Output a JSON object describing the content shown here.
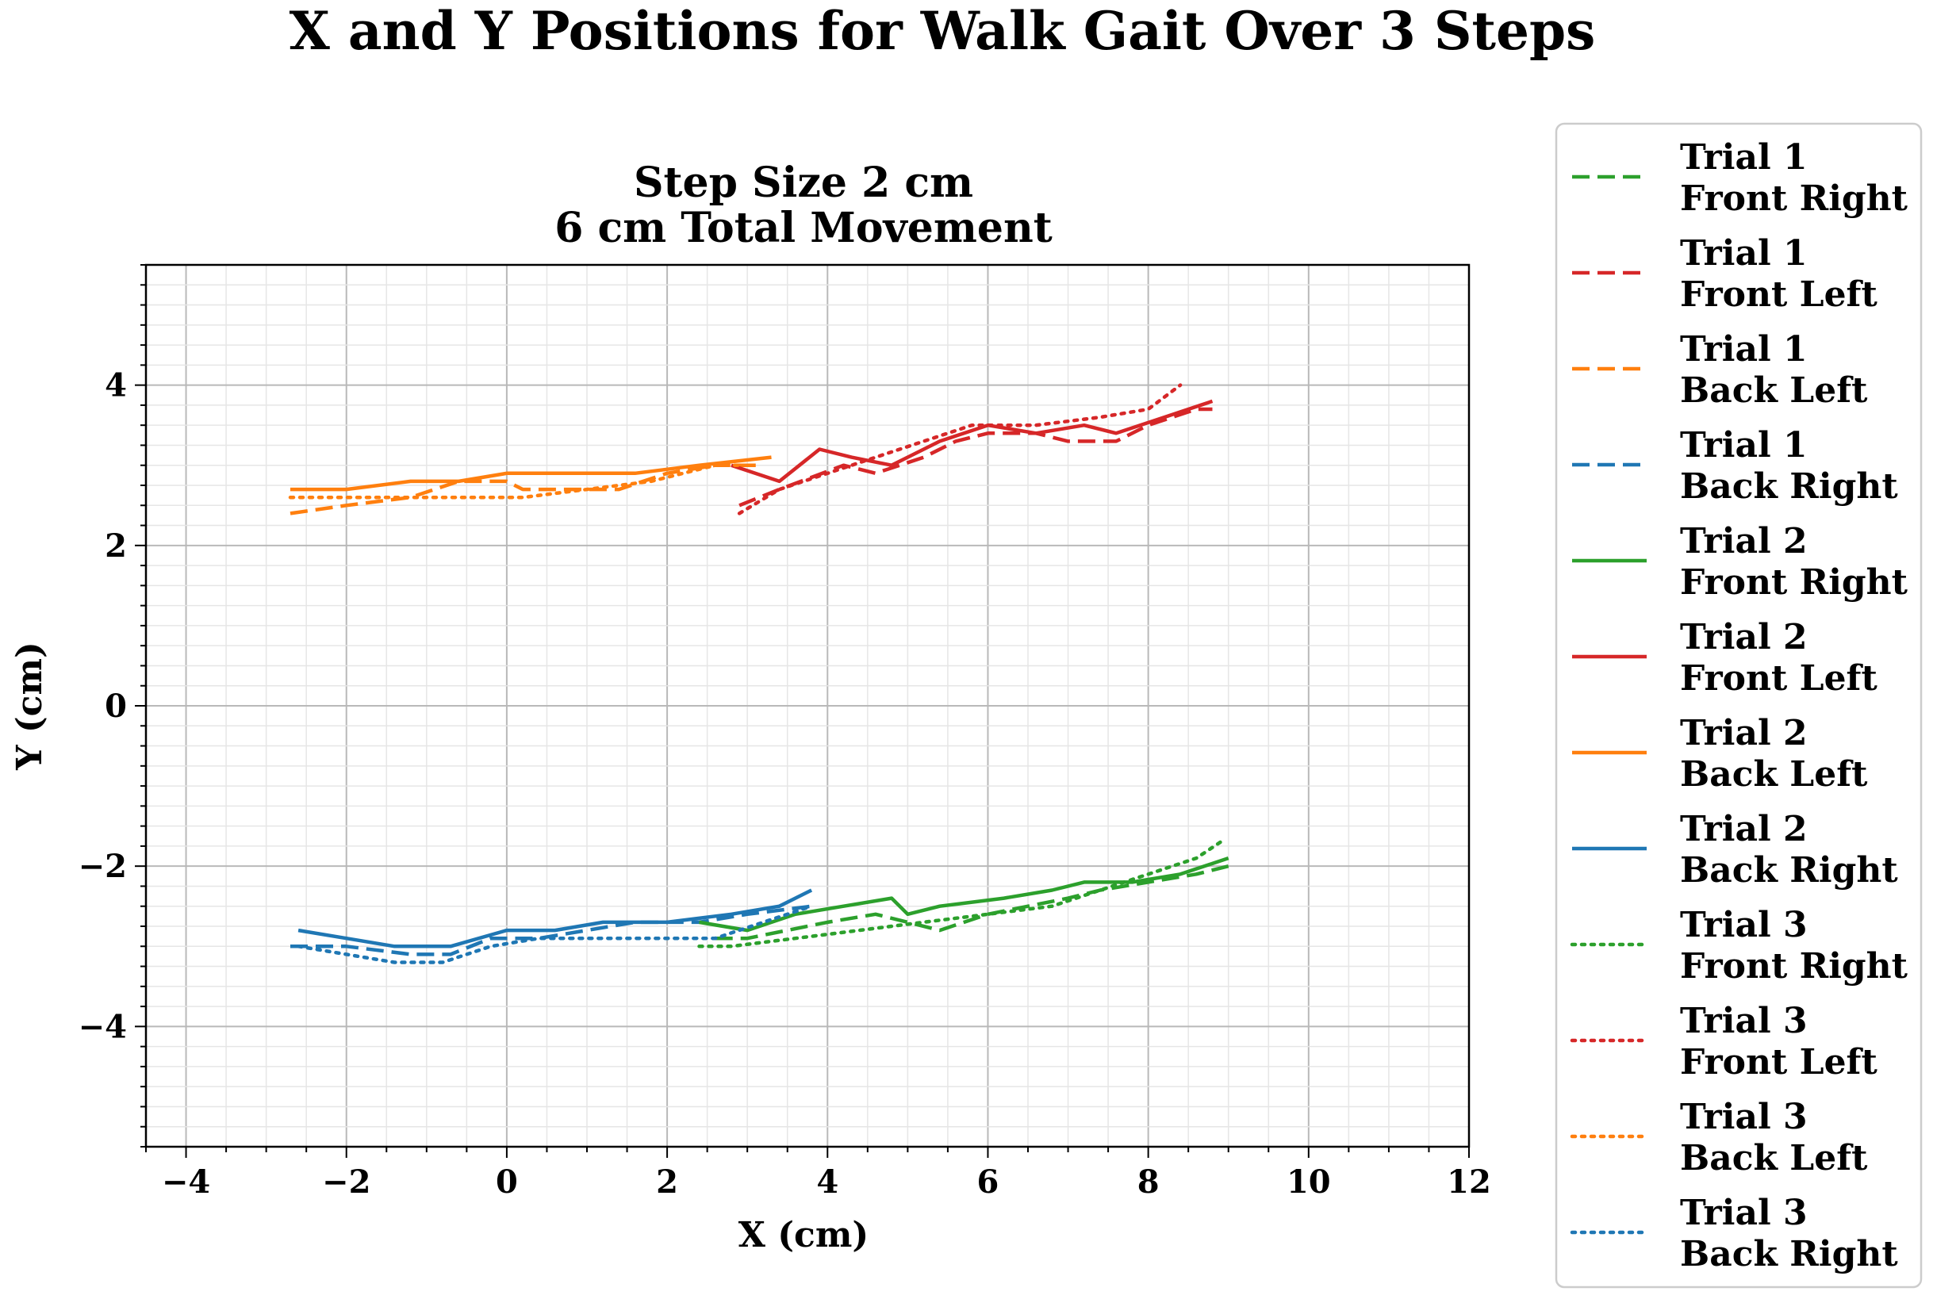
{
  "chart_data": {
    "type": "line",
    "suptitle": "X and Y Positions for Walk Gait Over 3 Steps",
    "title_lines": [
      "Step Size 2 cm",
      "6 cm Total Movement"
    ],
    "xlabel": "X (cm)",
    "ylabel": "Y (cm)",
    "xlim": [
      -4.5,
      12
    ],
    "ylim": [
      -5.5,
      5.5
    ],
    "xticks": [
      -4,
      -2,
      0,
      2,
      4,
      6,
      8,
      10,
      12
    ],
    "xtick_labels": [
      "−4",
      "−2",
      "0",
      "2",
      "4",
      "6",
      "8",
      "10",
      "12"
    ],
    "yticks": [
      -4,
      -2,
      0,
      2,
      4
    ],
    "ytick_labels": [
      "−4",
      "−2",
      "0",
      "2",
      "4"
    ],
    "grid": true,
    "legend_position": "outside-right",
    "colors": {
      "front_right": "#2ca02c",
      "front_left": "#d62728",
      "back_left": "#ff7f0e",
      "back_right": "#1f77b4"
    },
    "series": [
      {
        "label_line1": "Trial 1",
        "label_line2": "Front Right",
        "color": "#2ca02c",
        "dash": "dashed",
        "x": [
          2.6,
          3.0,
          4.0,
          4.6,
          5.0,
          5.4,
          6.0,
          7.0,
          7.4,
          8.0,
          8.6,
          9.0
        ],
        "y": [
          -2.9,
          -2.9,
          -2.7,
          -2.6,
          -2.7,
          -2.8,
          -2.6,
          -2.4,
          -2.3,
          -2.2,
          -2.1,
          -2.0
        ]
      },
      {
        "label_line1": "Trial 1",
        "label_line2": "Front Left",
        "color": "#d62728",
        "dash": "dashed",
        "x": [
          2.9,
          3.4,
          4.2,
          4.6,
          5.2,
          5.6,
          6.0,
          6.6,
          7.0,
          7.6,
          8.0,
          8.6,
          8.8
        ],
        "y": [
          2.5,
          2.7,
          3.0,
          2.9,
          3.1,
          3.3,
          3.4,
          3.4,
          3.3,
          3.3,
          3.5,
          3.7,
          3.7
        ]
      },
      {
        "label_line1": "Trial 1",
        "label_line2": "Back Left",
        "color": "#ff7f0e",
        "dash": "dashed",
        "x": [
          -2.7,
          -2.0,
          -1.2,
          -0.6,
          0.0,
          0.2,
          0.6,
          1.4,
          2.0,
          2.6,
          3.2
        ],
        "y": [
          2.4,
          2.5,
          2.6,
          2.8,
          2.8,
          2.7,
          2.7,
          2.7,
          2.9,
          3.0,
          3.0
        ]
      },
      {
        "label_line1": "Trial 1",
        "label_line2": "Back Right",
        "color": "#1f77b4",
        "dash": "dashed",
        "x": [
          -2.7,
          -2.0,
          -1.2,
          -0.7,
          -0.2,
          0.4,
          1.0,
          1.6,
          2.4,
          3.0,
          3.8
        ],
        "y": [
          -3.0,
          -3.0,
          -3.1,
          -3.1,
          -2.9,
          -2.9,
          -2.8,
          -2.7,
          -2.7,
          -2.6,
          -2.5
        ]
      },
      {
        "label_line1": "Trial 2",
        "label_line2": "Front Right",
        "color": "#2ca02c",
        "dash": "solid",
        "x": [
          2.4,
          3.0,
          3.6,
          4.2,
          4.8,
          5.0,
          5.4,
          6.2,
          6.8,
          7.2,
          7.8,
          8.4,
          9.0
        ],
        "y": [
          -2.7,
          -2.8,
          -2.6,
          -2.5,
          -2.4,
          -2.6,
          -2.5,
          -2.4,
          -2.3,
          -2.2,
          -2.2,
          -2.1,
          -1.9
        ]
      },
      {
        "label_line1": "Trial 2",
        "label_line2": "Front Left",
        "color": "#d62728",
        "dash": "solid",
        "x": [
          2.8,
          3.4,
          3.9,
          4.3,
          4.8,
          5.4,
          6.0,
          6.6,
          7.2,
          7.6,
          8.2,
          8.8
        ],
        "y": [
          3.0,
          2.8,
          3.2,
          3.1,
          3.0,
          3.3,
          3.5,
          3.4,
          3.5,
          3.4,
          3.6,
          3.8
        ]
      },
      {
        "label_line1": "Trial 2",
        "label_line2": "Back Left",
        "color": "#ff7f0e",
        "dash": "solid",
        "x": [
          -2.7,
          -2.0,
          -1.2,
          -0.6,
          0.0,
          0.4,
          1.0,
          1.6,
          2.4,
          3.3
        ],
        "y": [
          2.7,
          2.7,
          2.8,
          2.8,
          2.9,
          2.9,
          2.9,
          2.9,
          3.0,
          3.1
        ]
      },
      {
        "label_line1": "Trial 2",
        "label_line2": "Back Right",
        "color": "#1f77b4",
        "dash": "solid",
        "x": [
          -2.6,
          -2.0,
          -1.4,
          -0.7,
          0.0,
          0.6,
          1.2,
          2.0,
          2.8,
          3.4,
          3.8
        ],
        "y": [
          -2.8,
          -2.9,
          -3.0,
          -3.0,
          -2.8,
          -2.8,
          -2.7,
          -2.7,
          -2.6,
          -2.5,
          -2.3
        ]
      },
      {
        "label_line1": "Trial 3",
        "label_line2": "Front Right",
        "color": "#2ca02c",
        "dash": "dotted",
        "x": [
          2.4,
          2.8,
          3.6,
          4.4,
          5.2,
          6.0,
          6.8,
          7.4,
          8.0,
          8.6,
          8.9
        ],
        "y": [
          -3.0,
          -3.0,
          -2.9,
          -2.8,
          -2.7,
          -2.6,
          -2.5,
          -2.3,
          -2.1,
          -1.9,
          -1.7
        ]
      },
      {
        "label_line1": "Trial 3",
        "label_line2": "Front Left",
        "color": "#d62728",
        "dash": "dotted",
        "x": [
          2.9,
          3.4,
          4.0,
          4.6,
          5.2,
          5.8,
          6.6,
          7.4,
          8.0,
          8.4
        ],
        "y": [
          2.4,
          2.7,
          2.9,
          3.1,
          3.3,
          3.5,
          3.5,
          3.6,
          3.7,
          4.0
        ]
      },
      {
        "label_line1": "Trial 3",
        "label_line2": "Back Left",
        "color": "#ff7f0e",
        "dash": "dotted",
        "x": [
          -2.7,
          -2.0,
          -1.2,
          -0.6,
          0.2,
          1.0,
          1.8,
          2.6,
          3.0
        ],
        "y": [
          2.6,
          2.6,
          2.6,
          2.6,
          2.6,
          2.7,
          2.8,
          3.0,
          3.0
        ]
      },
      {
        "label_line1": "Trial 3",
        "label_line2": "Back Right",
        "color": "#1f77b4",
        "dash": "dotted",
        "x": [
          -2.6,
          -2.0,
          -1.4,
          -0.8,
          -0.2,
          0.4,
          1.2,
          2.0,
          2.6,
          3.2,
          3.8
        ],
        "y": [
          -3.0,
          -3.1,
          -3.2,
          -3.2,
          -3.0,
          -2.9,
          -2.9,
          -2.9,
          -2.9,
          -2.7,
          -2.5
        ]
      }
    ]
  }
}
